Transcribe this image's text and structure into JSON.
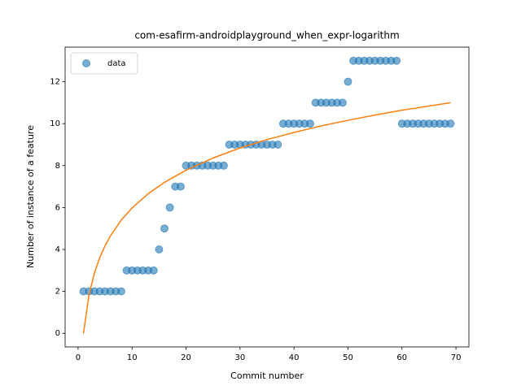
{
  "chart_data": {
    "type": "scatter",
    "title": "com-esafirm-androidplayground_when_expr-logarithm",
    "xlabel": "Commit number",
    "ylabel": "Number of instance of a feature",
    "xlim": [
      -2.4,
      72.4
    ],
    "xticks": [
      0,
      10,
      20,
      30,
      40,
      50,
      60,
      70
    ],
    "ylim": [
      -0.65,
      13.65
    ],
    "yticks": [
      0,
      2,
      4,
      6,
      8,
      10,
      12
    ],
    "legend": "upper left",
    "series": [
      {
        "name": "data",
        "style": "marker",
        "color": "#1f77b4",
        "x": [
          1,
          2,
          3,
          4,
          5,
          6,
          7,
          8,
          9,
          10,
          11,
          12,
          13,
          14,
          15,
          16,
          17,
          18,
          19,
          20,
          21,
          22,
          23,
          24,
          25,
          26,
          27,
          28,
          29,
          30,
          31,
          32,
          33,
          34,
          35,
          36,
          37,
          38,
          39,
          40,
          41,
          42,
          43,
          44,
          45,
          46,
          47,
          48,
          49,
          50,
          51,
          52,
          53,
          54,
          55,
          56,
          57,
          58,
          59,
          60,
          61,
          62,
          63,
          64,
          65,
          66,
          67,
          68,
          69
        ],
        "values": [
          2,
          2,
          2,
          2,
          2,
          2,
          2,
          2,
          3,
          3,
          3,
          3,
          3,
          3,
          4,
          5,
          6,
          7,
          7,
          8,
          8,
          8,
          8,
          8,
          8,
          8,
          8,
          9,
          9,
          9,
          9,
          9,
          9,
          9,
          9,
          9,
          9,
          10,
          10,
          10,
          10,
          10,
          10,
          11,
          11,
          11,
          11,
          11,
          11,
          12,
          13,
          13,
          13,
          13,
          13,
          13,
          13,
          13,
          13,
          10,
          10,
          10,
          10,
          10,
          10,
          10,
          10,
          10,
          10
        ]
      },
      {
        "style": "line",
        "color": "#ff7f0e",
        "x": [
          1,
          2,
          3,
          4,
          5,
          6,
          8,
          10,
          13,
          16,
          20,
          25,
          30,
          35,
          40,
          45,
          50,
          55,
          60,
          65,
          69
        ],
        "values": [
          0,
          1.8,
          2.85,
          3.6,
          4.18,
          4.65,
          5.4,
          5.98,
          6.66,
          7.2,
          7.78,
          8.36,
          8.84,
          9.24,
          9.58,
          9.89,
          10.16,
          10.41,
          10.64,
          10.84,
          11.0
        ]
      }
    ]
  }
}
